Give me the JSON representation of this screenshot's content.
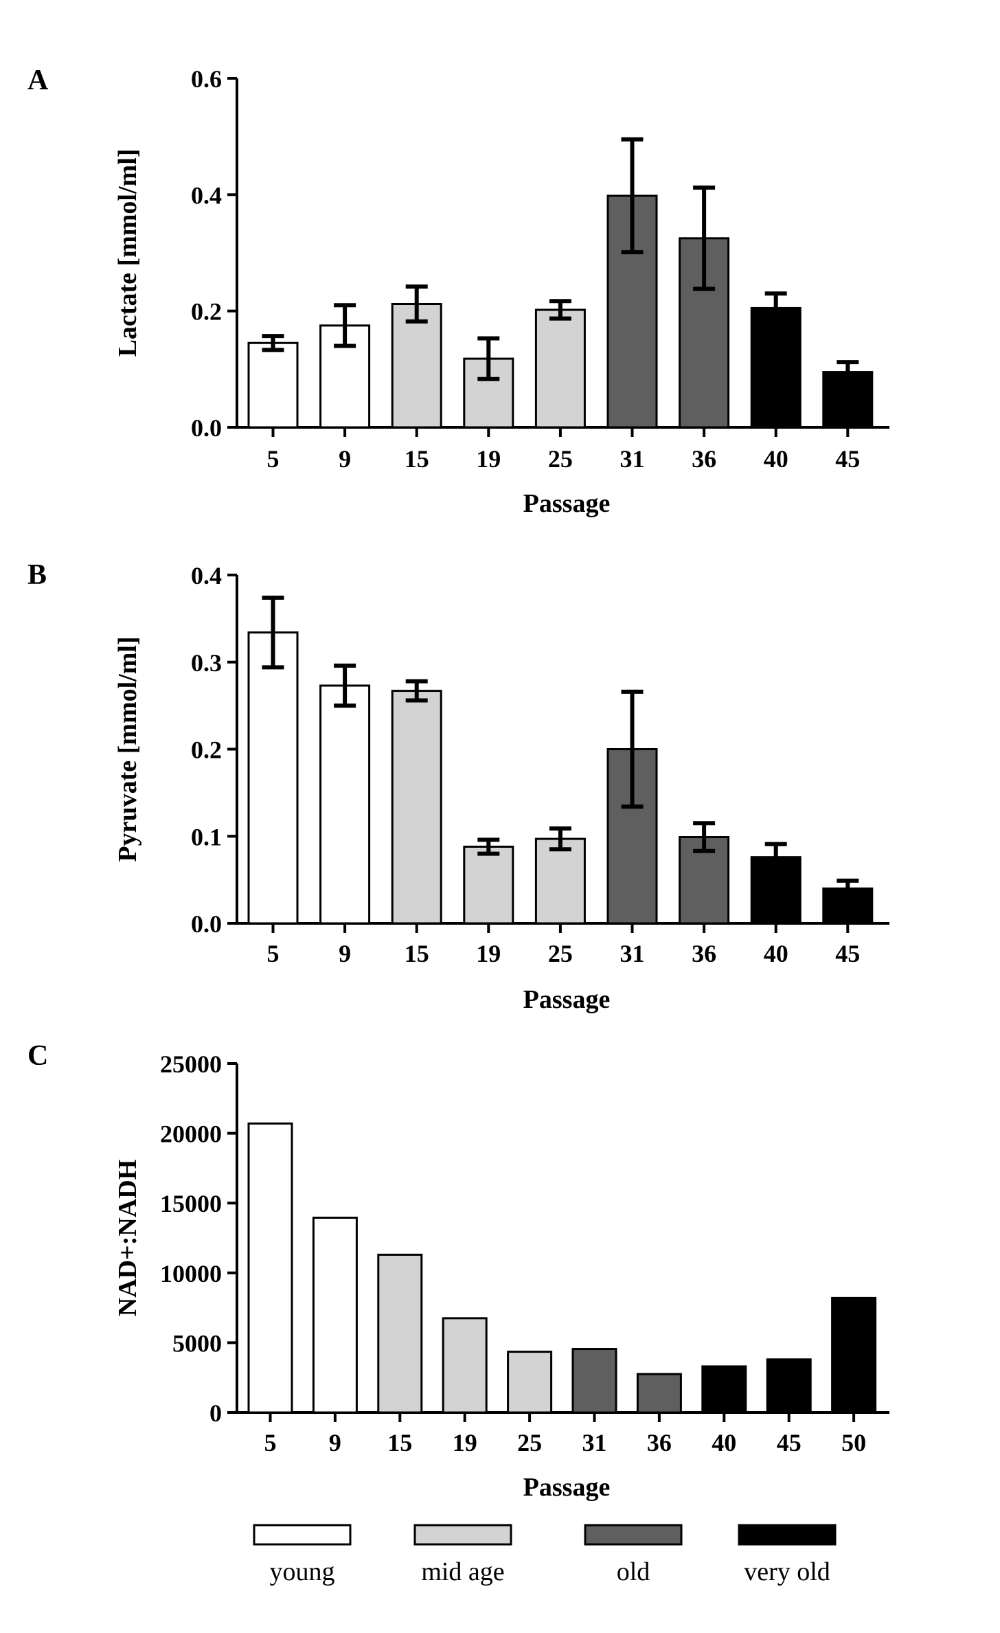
{
  "colors": {
    "young": "#ffffff",
    "mid age": "#d3d3d3",
    "old": "#5f5f5f",
    "very old": "#000000"
  },
  "legend": [
    {
      "name": "young",
      "color": "#ffffff"
    },
    {
      "name": "mid age",
      "color": "#d3d3d3"
    },
    {
      "name": "old",
      "color": "#5f5f5f"
    },
    {
      "name": "very old",
      "color": "#000000"
    }
  ],
  "chart_data": [
    {
      "panel": "A",
      "type": "bar",
      "xlabel": "Passage",
      "ylabel": "Lactate [mmol/ml]",
      "ylim": [
        0,
        0.6
      ],
      "yticks": [
        "0.0",
        "0.2",
        "0.4",
        "0.6"
      ],
      "categories": [
        "5",
        "9",
        "15",
        "19",
        "25",
        "31",
        "36",
        "40",
        "45"
      ],
      "values": [
        0.145,
        0.175,
        0.212,
        0.118,
        0.202,
        0.398,
        0.325,
        0.205,
        0.095
      ],
      "errors": [
        0.012,
        0.035,
        0.03,
        0.035,
        0.015,
        0.097,
        0.087,
        0.025,
        0.017
      ],
      "groups": [
        "young",
        "young",
        "mid age",
        "mid age",
        "mid age",
        "old",
        "old",
        "very old",
        "very old"
      ]
    },
    {
      "panel": "B",
      "type": "bar",
      "xlabel": "Passage",
      "ylabel": "Pyruvate [mmol/ml]",
      "ylim": [
        0,
        0.4
      ],
      "yticks": [
        "0.0",
        "0.1",
        "0.2",
        "0.3",
        "0.4"
      ],
      "categories": [
        "5",
        "9",
        "15",
        "19",
        "25",
        "31",
        "36",
        "40",
        "45"
      ],
      "values": [
        0.334,
        0.273,
        0.267,
        0.088,
        0.097,
        0.2,
        0.099,
        0.076,
        0.04
      ],
      "errors": [
        0.04,
        0.023,
        0.011,
        0.008,
        0.012,
        0.066,
        0.016,
        0.015,
        0.009
      ],
      "groups": [
        "young",
        "young",
        "mid age",
        "mid age",
        "mid age",
        "old",
        "old",
        "very old",
        "very old"
      ]
    },
    {
      "panel": "C",
      "type": "bar",
      "xlabel": "Passage",
      "ylabel": "NAD+:NADH",
      "ylim": [
        0,
        25000
      ],
      "yticks": [
        "0",
        "5000",
        "10000",
        "15000",
        "20000",
        "25000"
      ],
      "categories": [
        "5",
        "9",
        "15",
        "19",
        "25",
        "31",
        "36",
        "40",
        "45",
        "50"
      ],
      "values": [
        20700,
        13950,
        11300,
        6750,
        4350,
        4550,
        2750,
        3300,
        3800,
        8200
      ],
      "groups": [
        "young",
        "young",
        "mid age",
        "mid age",
        "mid age",
        "old",
        "old",
        "very old",
        "very old",
        "very old"
      ]
    }
  ]
}
